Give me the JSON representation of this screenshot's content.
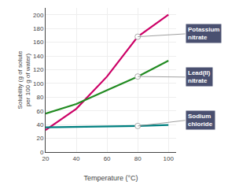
{
  "chart_data": {
    "type": "line",
    "xlabel": "Temperature (°C)",
    "ylabel": "Solubility (g of solute\nper 100 g of water)",
    "x": [
      20,
      40,
      60,
      80,
      100
    ],
    "series": [
      {
        "color": "#cc0066",
        "values": [
          32,
          63,
          110,
          168,
          200
        ]
      },
      {
        "color": "#228B22",
        "values": [
          56,
          70,
          90,
          110,
          133
        ]
      },
      {
        "color": "#008080",
        "values": [
          36,
          36.5,
          37,
          38,
          39.5
        ]
      }
    ],
    "annotations": [
      {
        "text": "Potassium\nnitrate",
        "x": 80,
        "y": 168
      },
      {
        "text": "Lead(II)\nnitrate",
        "x": 80,
        "y": 110
      },
      {
        "text": "Sodium\nchloride",
        "x": 80,
        "y": 38
      }
    ],
    "xlim": [
      20,
      105
    ],
    "ylim": [
      0,
      210
    ],
    "xticks": [
      20,
      40,
      60,
      80,
      100
    ],
    "yticks": [
      0,
      20,
      40,
      60,
      80,
      100,
      120,
      140,
      160,
      180,
      200
    ],
    "grid": true
  }
}
